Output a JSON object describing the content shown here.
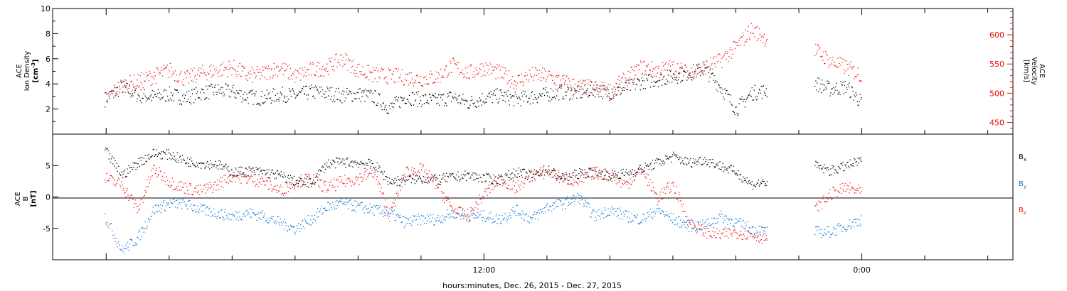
{
  "chart_data": [
    {
      "type": "scatter",
      "panel": "ion-density-velocity",
      "ylabel_lines": [
        "ACE",
        "Ion Density"
      ],
      "yunit_html": "[cm",
      "yunit_exp": "-3",
      "yunit_close": "]",
      "ylim": [
        0,
        10
      ],
      "yticks": [
        2,
        4,
        6,
        8,
        10
      ],
      "y2label_lines": [
        "ACE",
        "Velocity"
      ],
      "y2unit": "[km/s]",
      "y2lim": [
        430,
        645
      ],
      "y2ticks": [
        450,
        500,
        550,
        600
      ],
      "grid": false,
      "series": [
        {
          "name": "",
          "color": "#000000",
          "axis": "left",
          "x": [
            -0.05,
            0.5,
            1,
            1.5,
            2,
            2.5,
            3,
            3.5,
            4,
            4.5,
            5,
            5.5,
            6,
            6.5,
            7,
            7.5,
            8,
            8.5,
            9,
            9.5,
            10,
            10.5,
            11,
            11.5,
            12,
            12.5,
            13,
            13.5,
            14,
            14.5,
            15,
            15.5,
            16,
            16.5,
            17,
            17.5,
            18,
            18.5,
            19,
            19.5,
            20,
            20.5,
            21,
            21.5,
            22,
            22.5,
            23,
            23.5,
            24
          ],
          "y": [
            2.8,
            3.8,
            3.1,
            3.0,
            3.2,
            2.9,
            3.3,
            3.5,
            3.4,
            3.0,
            2.9,
            3.2,
            3.1,
            3.4,
            3.3,
            3.1,
            3.2,
            3.0,
            2.1,
            3.0,
            2.8,
            2.7,
            3.0,
            2.5,
            2.9,
            3.1,
            2.8,
            3.0,
            3.2,
            3.4,
            3.3,
            3.6,
            3.3,
            3.7,
            4.2,
            4.4,
            4.6,
            4.9,
            5.2,
            3.8,
            2.0,
            3.3,
            3.5,
            null,
            null,
            4.1,
            3.6,
            3.8,
            2.5
          ]
        },
        {
          "name": "",
          "color": "#ee1111",
          "axis": "right",
          "x": [
            -0.05,
            0.5,
            1,
            1.5,
            2,
            2.5,
            3,
            3.5,
            4,
            4.5,
            5,
            5.5,
            6,
            6.5,
            7,
            7.5,
            8,
            8.5,
            9,
            9.5,
            10,
            10.5,
            11,
            11.5,
            12,
            12.5,
            13,
            13.5,
            14,
            14.5,
            15,
            15.5,
            16,
            16.5,
            17,
            17.5,
            18,
            18.5,
            19,
            19.5,
            20,
            20.5,
            21,
            21.5,
            22,
            22.5,
            23,
            23.5,
            24
          ],
          "y": [
            490,
            515,
            520,
            530,
            540,
            525,
            535,
            540,
            545,
            530,
            535,
            545,
            530,
            540,
            545,
            560,
            540,
            532,
            530,
            528,
            525,
            528,
            548,
            535,
            545,
            535,
            520,
            532,
            530,
            520,
            512,
            510,
            505,
            525,
            545,
            540,
            545,
            535,
            546,
            556,
            580,
            610,
            592,
            null,
            null,
            575,
            555,
            545,
            530
          ]
        }
      ]
    },
    {
      "type": "scatter",
      "panel": "magnetic-field",
      "ylabel_lines": [
        "ACE",
        "B"
      ],
      "yunit": "[nT]",
      "ylim": [
        -10,
        10
      ],
      "yticks": [
        -5,
        0,
        5
      ],
      "grid": false,
      "xlabel": "hours:minutes, Dec. 26, 2015 - Dec. 27, 2015",
      "xticks": [
        "12:00",
        "0:00"
      ],
      "xtick_hours": [
        12,
        24
      ],
      "xlim": [
        -1.7,
        28.8
      ],
      "series": [
        {
          "name": "B",
          "sub": "x",
          "color": "#000000",
          "x": [
            -0.05,
            0.5,
            1,
            1.5,
            2,
            2.5,
            3,
            3.5,
            4,
            4.5,
            5,
            5.5,
            6,
            6.5,
            7,
            7.5,
            8,
            8.5,
            9,
            9.5,
            10,
            10.5,
            11,
            11.5,
            12,
            12.5,
            13,
            13.5,
            14,
            14.5,
            15,
            15.5,
            16,
            16.5,
            17,
            17.5,
            18,
            18.5,
            19,
            19.5,
            20,
            20.5,
            21,
            21.5,
            22,
            22.5,
            23,
            23.5,
            24
          ],
          "y": [
            7.5,
            3.5,
            5.5,
            7.0,
            6.8,
            5.8,
            5.4,
            5.3,
            4.0,
            4.2,
            4.0,
            3.5,
            2.5,
            2.2,
            5.3,
            5.6,
            5.5,
            5.2,
            2.5,
            2.8,
            3.0,
            2.8,
            3.2,
            3.5,
            3.0,
            2.8,
            4.0,
            3.5,
            4.5,
            3.0,
            3.8,
            4.0,
            3.5,
            3.8,
            4.5,
            5.5,
            6.5,
            5.5,
            6.0,
            5.0,
            4.0,
            2.0,
            2.5,
            null,
            null,
            5.0,
            4.2,
            5.0,
            5.8
          ]
        },
        {
          "name": "B",
          "sub": "y",
          "color": "#1177dd",
          "x": [
            -0.05,
            0.5,
            1,
            1.5,
            2,
            2.5,
            3,
            3.5,
            4,
            4.5,
            5,
            5.5,
            6,
            6.5,
            7,
            7.5,
            8,
            8.5,
            9,
            9.5,
            10,
            10.5,
            11,
            11.5,
            12,
            12.5,
            13,
            13.5,
            14,
            14.5,
            15,
            15.5,
            16,
            16.5,
            17,
            17.5,
            18,
            18.5,
            19,
            19.5,
            20,
            20.5,
            21,
            21.5,
            22,
            22.5,
            23,
            23.5,
            24
          ],
          "y": [
            -3.0,
            -8.5,
            -6.5,
            -2.0,
            -1.0,
            -1.0,
            -2.0,
            -2.5,
            -3.0,
            -2.5,
            -3.0,
            -4.0,
            -5.0,
            -3.5,
            -1.5,
            -1.0,
            -1.5,
            -2.0,
            -2.5,
            -4.0,
            -3.5,
            -3.5,
            -2.5,
            -3.0,
            -3.0,
            -3.5,
            -2.0,
            -3.5,
            -1.5,
            -1.0,
            0.0,
            -3.0,
            -2.0,
            -3.0,
            -3.5,
            -2.0,
            -3.5,
            -4.5,
            -4.5,
            -3.0,
            -4.0,
            -5.0,
            -5.5,
            null,
            null,
            -5.5,
            -5.5,
            -4.5,
            -3.5
          ]
        },
        {
          "name": "B",
          "sub": "z",
          "color": "#ee1111",
          "x": [
            -0.05,
            0.5,
            1,
            1.5,
            2,
            2.5,
            3,
            3.5,
            4,
            4.5,
            5,
            5.5,
            6,
            6.5,
            7,
            7.5,
            8,
            8.5,
            9,
            9.5,
            10,
            10.5,
            11,
            11.5,
            12,
            12.5,
            13,
            13.5,
            14,
            14.5,
            15,
            15.5,
            16,
            16.5,
            17,
            17.5,
            18,
            18.5,
            19,
            19.5,
            20,
            20.5,
            21,
            21.5,
            22,
            22.5,
            23,
            23.5,
            24
          ],
          "y": [
            3.0,
            2.0,
            -2.0,
            4.5,
            2.5,
            1.5,
            1.0,
            2.0,
            3.5,
            3.0,
            2.5,
            1.0,
            2.5,
            3.0,
            1.5,
            2.5,
            3.0,
            4.0,
            -3.0,
            4.0,
            4.5,
            2.0,
            -2.0,
            -3.0,
            0.5,
            3.0,
            1.5,
            3.5,
            4.0,
            3.0,
            2.5,
            4.0,
            3.5,
            2.0,
            4.5,
            0.0,
            2.0,
            -4.0,
            -5.5,
            -6.0,
            -5.5,
            -6.0,
            -6.5,
            null,
            null,
            -2.0,
            0.5,
            1.5,
            0.8
          ]
        }
      ]
    }
  ]
}
